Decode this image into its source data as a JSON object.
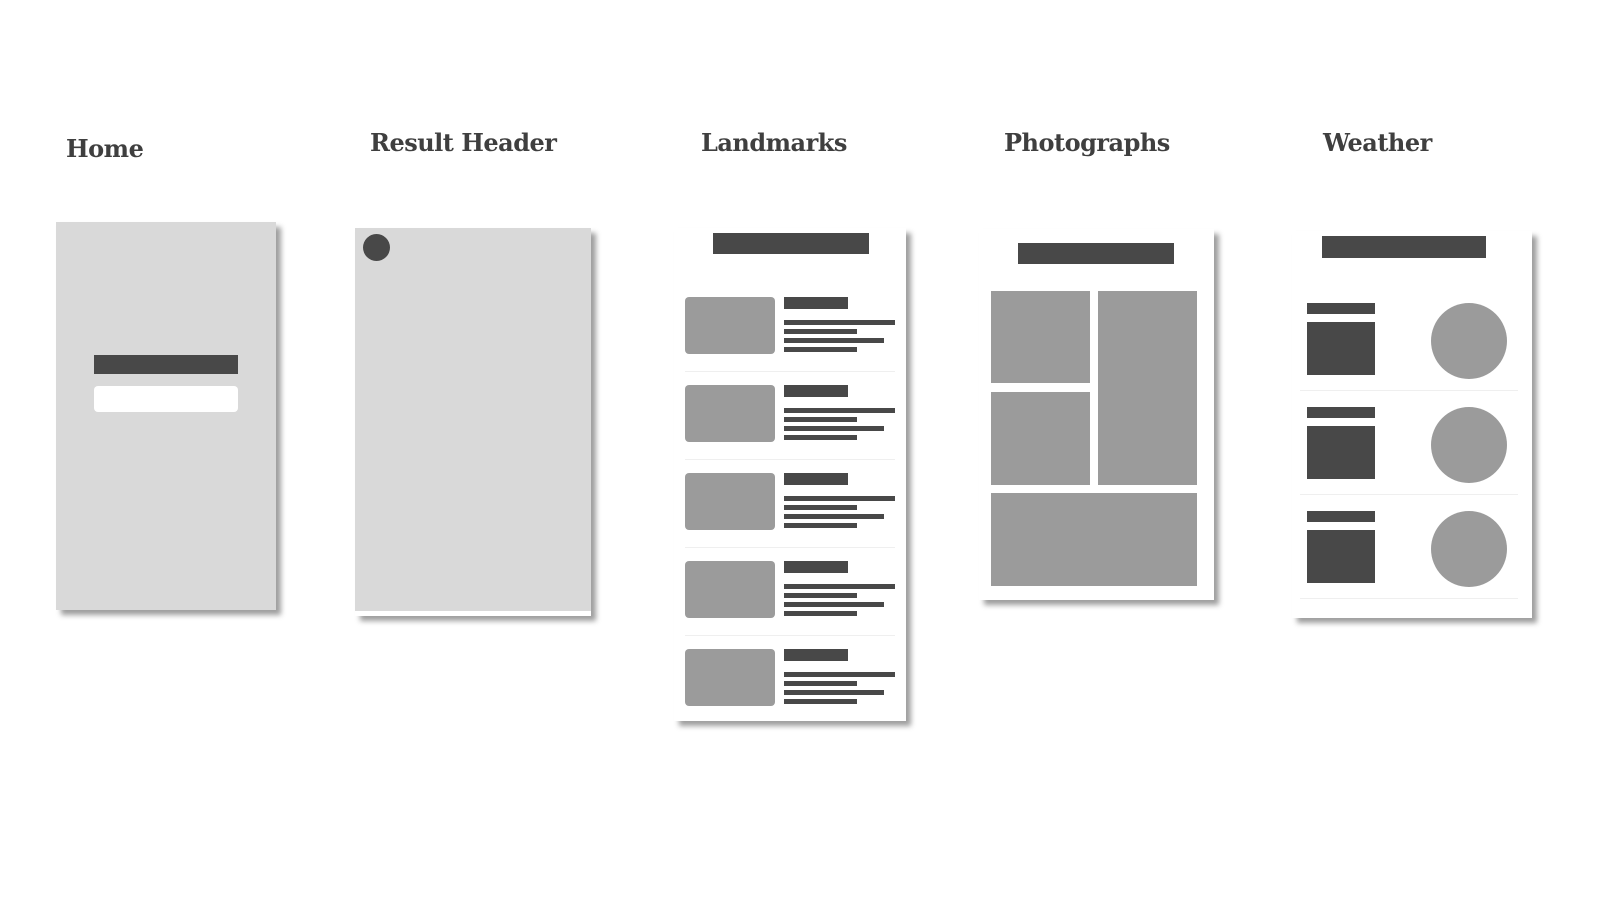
{
  "screens": {
    "home": {
      "title": "Home"
    },
    "result_header": {
      "title": "Result Header"
    },
    "landmarks": {
      "title": "Landmarks",
      "item_count": 5
    },
    "photographs": {
      "title": "Photographs",
      "tile_count": 4
    },
    "weather": {
      "title": "Weather",
      "row_count": 3
    }
  },
  "colors": {
    "placeholder_dark": "#484848",
    "placeholder_mid": "#9b9b9b",
    "frame_gray": "#d9d9d9",
    "frame_white": "#ffffff",
    "title_text": "#3f3f3f"
  }
}
